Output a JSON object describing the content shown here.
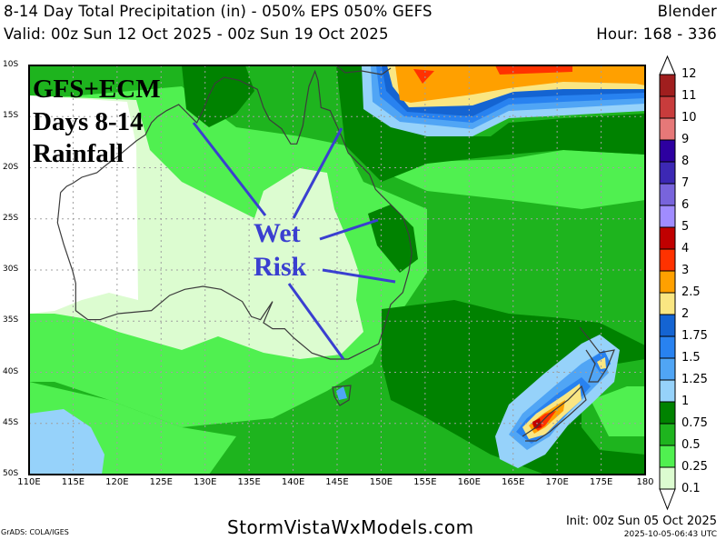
{
  "header": {
    "title": "8-14 Day Total Precipitation (in) - 050% EPS 050% GEFS",
    "model": "Blender",
    "valid": "Valid: 00z Sun 12 Oct 2025 - 00z Sun 19 Oct 2025",
    "hour": "Hour: 168 - 336"
  },
  "annotations": {
    "line1": "GFS+ECM",
    "line2": "Days 8-14",
    "line3": "Rainfall",
    "wet": "Wet",
    "risk": "Risk",
    "arrow_color": "#3a3fd0"
  },
  "axes": {
    "lat_labels": [
      "10S",
      "15S",
      "20S",
      "25S",
      "30S",
      "35S",
      "40S",
      "45S",
      "50S"
    ],
    "lon_labels": [
      "110E",
      "115E",
      "120E",
      "125E",
      "130E",
      "135E",
      "140E",
      "145E",
      "150E",
      "155E",
      "160E",
      "165E",
      "170E",
      "175E",
      "180"
    ]
  },
  "colorbar": {
    "labels": [
      "12",
      "11",
      "10",
      "9",
      "8",
      "7",
      "6",
      "5",
      "4",
      "3",
      "2.5",
      "2",
      "1.75",
      "1.5",
      "1.25",
      "1",
      "0.75",
      "0.5",
      "0.25",
      "0.1"
    ],
    "colors": [
      "#a01e1e",
      "#c83c3c",
      "#e67878",
      "#2d00a0",
      "#3c28b4",
      "#7864dc",
      "#a08cff",
      "#c00000",
      "#ff3200",
      "#ffa000",
      "#fae682",
      "#1464d2",
      "#2882f0",
      "#50a5f5",
      "#96d2fa",
      "#008200",
      "#1eb41e",
      "#50f050",
      "#dcfcd0"
    ]
  },
  "footer": {
    "credit": "GrADS: COLA/IGES",
    "site": "StormVistaWxModels.com",
    "init": "Init: 00z Sun 05 Oct 2025",
    "stamp": "2025-10-05-06:43 UTC"
  }
}
